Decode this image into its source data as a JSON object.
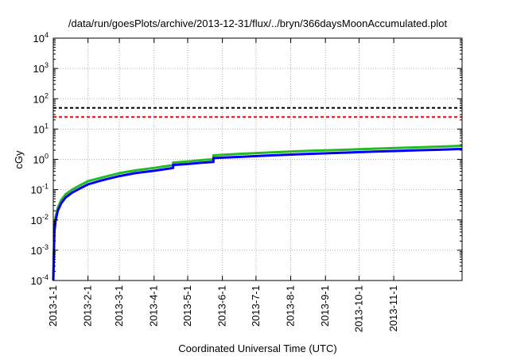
{
  "chart_data": {
    "type": "line",
    "title": "/data/run/goesPlots/archive/2013-12-31/flux/../bryn/366daysMoonAccumulated.plot",
    "xlabel": "Coordinated Universal Time (UTC)",
    "ylabel": "cGy",
    "yscale": "log",
    "ylim": [
      0.0001,
      10000
    ],
    "xlim": [
      "2013-01-01",
      "2014-01-01"
    ],
    "grid": true,
    "legend": "none",
    "y_ticks": [
      {
        "value": 0.0001,
        "base": "10",
        "exp": "-4"
      },
      {
        "value": 0.001,
        "base": "10",
        "exp": "-3"
      },
      {
        "value": 0.01,
        "base": "10",
        "exp": "-2"
      },
      {
        "value": 0.1,
        "base": "10",
        "exp": "-1"
      },
      {
        "value": 1,
        "base": "10",
        "exp": "0"
      },
      {
        "value": 10,
        "base": "10",
        "exp": "1"
      },
      {
        "value": 100,
        "base": "10",
        "exp": "2"
      },
      {
        "value": 1000,
        "base": "10",
        "exp": "3"
      },
      {
        "value": 10000,
        "base": "10",
        "exp": "4"
      }
    ],
    "x_ticks": [
      {
        "date": "2013-01-01",
        "label": "2013-1-1"
      },
      {
        "date": "2013-02-01",
        "label": "2013-2-1"
      },
      {
        "date": "2013-03-01",
        "label": "2013-3-1"
      },
      {
        "date": "2013-04-01",
        "label": "2013-4-1"
      },
      {
        "date": "2013-05-01",
        "label": "2013-5-1"
      },
      {
        "date": "2013-06-01",
        "label": "2013-6-1"
      },
      {
        "date": "2013-07-01",
        "label": "2013-7-1"
      },
      {
        "date": "2013-08-01",
        "label": "2013-8-1"
      },
      {
        "date": "2013-09-01",
        "label": "2013-9-1"
      },
      {
        "date": "2013-10-01",
        "label": "2013-10-1"
      },
      {
        "date": "2013-11-01",
        "label": "2013-11-1"
      }
    ],
    "threshold_lines": [
      {
        "value": 50,
        "color": "#000000",
        "style": "dashed"
      },
      {
        "value": 25,
        "color": "#ff0000",
        "style": "dashed"
      }
    ],
    "series": [
      {
        "color": "#22bb22",
        "points": [
          [
            "2013-01-01",
            0.0001
          ],
          [
            "2013-01-02",
            0.005
          ],
          [
            "2013-01-03",
            0.012
          ],
          [
            "2013-01-05",
            0.025
          ],
          [
            "2013-01-08",
            0.045
          ],
          [
            "2013-01-12",
            0.07
          ],
          [
            "2013-01-18",
            0.1
          ],
          [
            "2013-01-25",
            0.14
          ],
          [
            "2013-02-01",
            0.19
          ],
          [
            "2013-02-15",
            0.26
          ],
          [
            "2013-03-01",
            0.35
          ],
          [
            "2013-03-15",
            0.43
          ],
          [
            "2013-04-01",
            0.52
          ],
          [
            "2013-04-15",
            0.62
          ],
          [
            "2013-04-18",
            0.64
          ],
          [
            "2013-04-18",
            0.78
          ],
          [
            "2013-05-01",
            0.85
          ],
          [
            "2013-05-15",
            0.95
          ],
          [
            "2013-05-24",
            1.0
          ],
          [
            "2013-05-24",
            1.35
          ],
          [
            "2013-06-15",
            1.5
          ],
          [
            "2013-07-15",
            1.7
          ],
          [
            "2013-08-15",
            1.9
          ],
          [
            "2013-09-15",
            2.05
          ],
          [
            "2013-10-15",
            2.25
          ],
          [
            "2013-11-15",
            2.45
          ],
          [
            "2013-12-15",
            2.65
          ],
          [
            "2014-01-01",
            2.8
          ]
        ]
      },
      {
        "color": "#0000ff",
        "points": [
          [
            "2013-01-01",
            0.0001
          ],
          [
            "2013-01-02",
            0.004
          ],
          [
            "2013-01-03",
            0.009
          ],
          [
            "2013-01-05",
            0.02
          ],
          [
            "2013-01-08",
            0.035
          ],
          [
            "2013-01-12",
            0.055
          ],
          [
            "2013-01-18",
            0.08
          ],
          [
            "2013-01-25",
            0.11
          ],
          [
            "2013-02-01",
            0.15
          ],
          [
            "2013-02-15",
            0.21
          ],
          [
            "2013-03-01",
            0.28
          ],
          [
            "2013-03-15",
            0.35
          ],
          [
            "2013-04-01",
            0.42
          ],
          [
            "2013-04-15",
            0.5
          ],
          [
            "2013-04-18",
            0.52
          ],
          [
            "2013-04-18",
            0.65
          ],
          [
            "2013-05-01",
            0.7
          ],
          [
            "2013-05-15",
            0.78
          ],
          [
            "2013-05-24",
            0.82
          ],
          [
            "2013-05-24",
            1.1
          ],
          [
            "2013-06-15",
            1.2
          ],
          [
            "2013-07-15",
            1.35
          ],
          [
            "2013-08-15",
            1.5
          ],
          [
            "2013-09-15",
            1.65
          ],
          [
            "2013-10-15",
            1.8
          ],
          [
            "2013-11-15",
            1.95
          ],
          [
            "2013-12-15",
            2.1
          ],
          [
            "2014-01-01",
            2.2
          ]
        ]
      }
    ]
  }
}
